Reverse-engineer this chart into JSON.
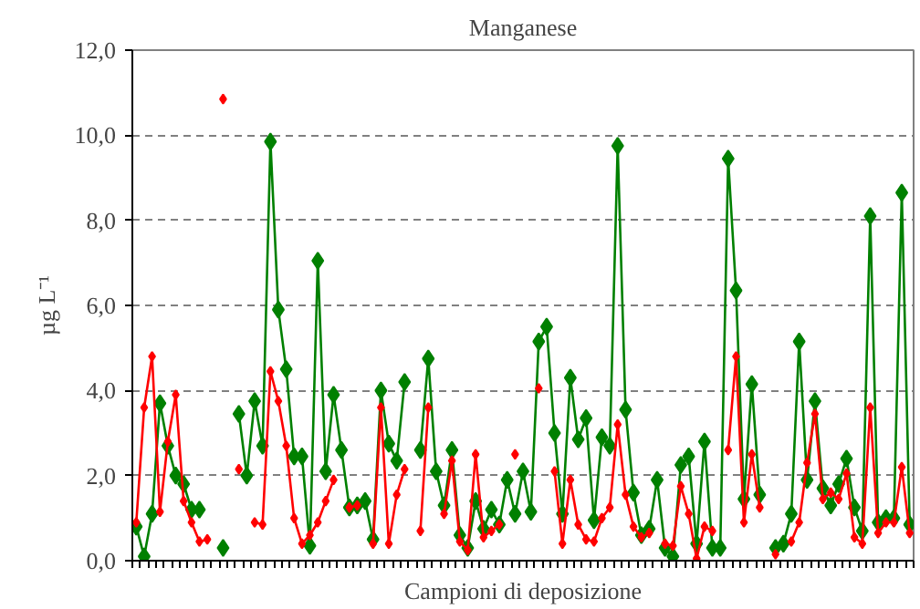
{
  "chart_data": {
    "type": "line",
    "title": "Manganese",
    "xlabel": "Campioni di deposizione",
    "ylabel": "µg L⁻¹",
    "categories": [
      null,
      null,
      null,
      null,
      null,
      null,
      null,
      null,
      null,
      null,
      null,
      null,
      null,
      null,
      null,
      null,
      null,
      null,
      null,
      null,
      null,
      null,
      null,
      null,
      null,
      null,
      null,
      null,
      null,
      null,
      null,
      null,
      null,
      null,
      null,
      null,
      null,
      null,
      null,
      null,
      null,
      null,
      null,
      null,
      null,
      null,
      null,
      null,
      null,
      null,
      null,
      null,
      null,
      null,
      null,
      null,
      null,
      null,
      null,
      null,
      null,
      null,
      null,
      null,
      null,
      null,
      null,
      null,
      null,
      null,
      null,
      null,
      null,
      null,
      null,
      null,
      null,
      null,
      null,
      null,
      null,
      null,
      null,
      null,
      null,
      null,
      null,
      null,
      null,
      null,
      null,
      null,
      null,
      null,
      null,
      null,
      null,
      null,
      null
    ],
    "series": [
      {
        "color": "#008000",
        "marker": "diamond",
        "values": [
          0.8,
          0.1,
          1.1,
          3.7,
          2.7,
          2.0,
          1.8,
          1.2,
          1.2,
          null,
          null,
          0.3,
          null,
          3.45,
          2.0,
          3.75,
          2.7,
          9.85,
          5.9,
          4.5,
          2.45,
          2.45,
          0.35,
          7.05,
          2.1,
          3.9,
          2.6,
          1.25,
          1.3,
          1.4,
          0.5,
          4.0,
          2.75,
          2.35,
          4.2,
          null,
          2.6,
          4.75,
          2.1,
          1.3,
          2.6,
          0.6,
          0.3,
          1.4,
          0.75,
          1.2,
          0.85,
          1.9,
          1.1,
          2.1,
          1.15,
          5.15,
          5.5,
          3.0,
          1.1,
          4.3,
          2.85,
          3.35,
          0.95,
          2.9,
          2.7,
          9.75,
          3.55,
          1.6,
          0.6,
          0.75,
          1.9,
          0.3,
          0.1,
          2.25,
          2.45,
          0.4,
          2.8,
          0.3,
          0.3,
          9.45,
          6.35,
          1.45,
          4.15,
          1.55,
          null,
          0.3,
          0.4,
          1.1,
          5.15,
          1.9,
          3.75,
          1.7,
          1.3,
          1.8,
          2.4,
          1.25,
          0.7,
          8.1,
          0.9,
          1.0,
          1.0,
          8.65,
          0.85
        ]
      },
      {
        "color": "#ff0000",
        "marker": "diamond",
        "values": [
          0.9,
          3.6,
          4.8,
          1.15,
          2.8,
          3.9,
          1.4,
          0.9,
          0.45,
          0.5,
          null,
          10.85,
          null,
          2.15,
          null,
          0.9,
          0.85,
          4.45,
          3.75,
          2.7,
          1.0,
          0.4,
          0.6,
          0.9,
          1.4,
          1.9,
          null,
          1.25,
          1.3,
          null,
          0.4,
          3.6,
          0.4,
          1.55,
          2.15,
          null,
          0.7,
          3.6,
          null,
          1.1,
          2.35,
          0.45,
          0.25,
          2.5,
          0.55,
          0.7,
          0.85,
          null,
          2.5,
          null,
          null,
          4.05,
          null,
          2.1,
          0.4,
          1.9,
          0.85,
          0.5,
          0.45,
          1.0,
          1.25,
          3.2,
          1.55,
          0.8,
          0.55,
          0.65,
          null,
          0.4,
          0.35,
          1.75,
          1.1,
          0.05,
          0.8,
          0.7,
          null,
          2.6,
          4.8,
          0.9,
          2.5,
          1.25,
          null,
          0.15,
          null,
          0.45,
          0.9,
          2.3,
          3.45,
          1.45,
          1.6,
          1.45,
          2.05,
          0.55,
          0.4,
          3.6,
          0.65,
          0.9,
          0.9,
          2.2,
          0.65
        ]
      }
    ],
    "ylim": [
      0,
      12
    ],
    "yticks": [
      {
        "value": 0,
        "label": "0,0"
      },
      {
        "value": 2,
        "label": "2,0"
      },
      {
        "value": 4,
        "label": "4,0"
      },
      {
        "value": 6,
        "label": "6,0"
      },
      {
        "value": 8,
        "label": "8,0"
      },
      {
        "value": 10,
        "label": "10,0"
      },
      {
        "value": 12,
        "label": "12,0"
      }
    ],
    "grid": "y",
    "line_style": "solid",
    "tick_labels": "y"
  }
}
